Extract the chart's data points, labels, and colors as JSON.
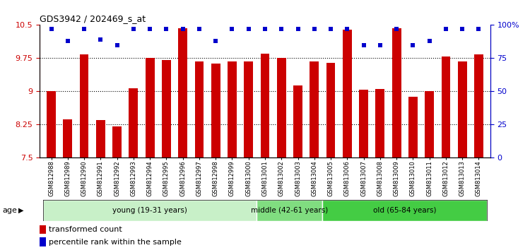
{
  "title": "GDS3942 / 202469_s_at",
  "samples": [
    "GSM812988",
    "GSM812989",
    "GSM812990",
    "GSM812991",
    "GSM812992",
    "GSM812993",
    "GSM812994",
    "GSM812995",
    "GSM812996",
    "GSM812997",
    "GSM812998",
    "GSM812999",
    "GSM813000",
    "GSM813001",
    "GSM813002",
    "GSM813003",
    "GSM813004",
    "GSM813005",
    "GSM813006",
    "GSM813007",
    "GSM813008",
    "GSM813009",
    "GSM813010",
    "GSM813011",
    "GSM813012",
    "GSM813013",
    "GSM813014"
  ],
  "bar_values": [
    9.0,
    8.37,
    9.83,
    8.35,
    8.2,
    9.07,
    9.75,
    9.7,
    10.42,
    9.68,
    9.63,
    9.67,
    9.68,
    9.85,
    9.75,
    9.13,
    9.68,
    9.65,
    10.4,
    9.03,
    9.05,
    10.42,
    8.88,
    9.0,
    9.79,
    9.68,
    9.84
  ],
  "percentile_values": [
    97,
    88,
    97,
    89,
    85,
    97,
    97,
    97,
    97,
    97,
    88,
    97,
    97,
    97,
    97,
    97,
    97,
    97,
    97,
    85,
    85,
    97,
    85,
    88,
    97,
    97,
    97
  ],
  "bar_color": "#cc0000",
  "dot_color": "#0000cc",
  "ylim_left": [
    7.5,
    10.5
  ],
  "ylim_right": [
    0,
    100
  ],
  "yticks_left": [
    7.5,
    8.25,
    9.0,
    9.75,
    10.5
  ],
  "yticks_right": [
    0,
    25,
    50,
    75,
    100
  ],
  "ytick_labels_left": [
    "7.5",
    "8.25",
    "9",
    "9.75",
    "10.5"
  ],
  "ytick_labels_right": [
    "0",
    "25",
    "50",
    "75",
    "100%"
  ],
  "hlines": [
    8.25,
    9.0,
    9.75
  ],
  "groups": [
    {
      "label": "young (19-31 years)",
      "start": 0,
      "end": 13,
      "color": "#c8f0c8"
    },
    {
      "label": "middle (42-61 years)",
      "start": 13,
      "end": 17,
      "color": "#80dd80"
    },
    {
      "label": "old (65-84 years)",
      "start": 17,
      "end": 27,
      "color": "#44cc44"
    }
  ],
  "age_label": "age",
  "legend_red_label": "transformed count",
  "legend_blue_label": "percentile rank within the sample",
  "bar_bottom": 7.5,
  "bar_width": 0.55
}
